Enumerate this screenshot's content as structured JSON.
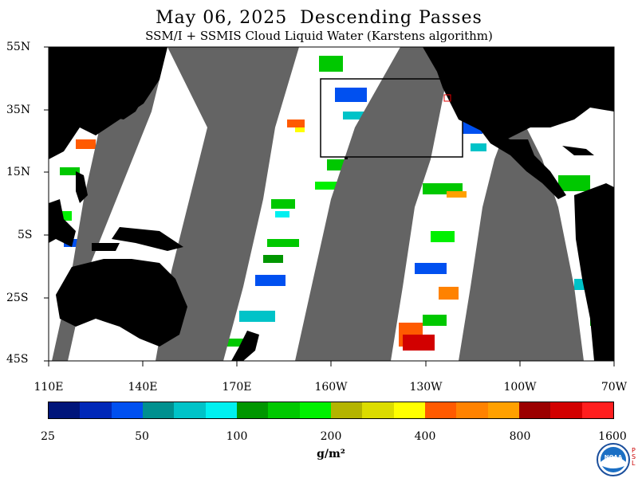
{
  "title": "May 06, 2025  Descending Passes",
  "subtitle": "SSM/I + SSMIS Cloud Liquid Water (Karstens algorithm)",
  "lat_labels": [
    "55N",
    "35N",
    "15N",
    "5S",
    "25S",
    "45S"
  ],
  "lon_labels": [
    "110E",
    "140E",
    "170E",
    "160W",
    "130W",
    "100W",
    "70W"
  ],
  "colorbar": {
    "colors": [
      "#00157a",
      "#0028b8",
      "#0050f0",
      "#00908f",
      "#00c3c8",
      "#00f0f0",
      "#009600",
      "#00c800",
      "#00f000",
      "#b4b400",
      "#dcdc00",
      "#ffff00",
      "#ff5a00",
      "#ff8200",
      "#ffa000",
      "#9b0000",
      "#d20000",
      "#ff1e1e"
    ],
    "ticks": [
      "25",
      "50",
      "100",
      "200",
      "400",
      "800",
      "1600"
    ],
    "units": "g/m²"
  },
  "logo": {
    "text": "NOAA",
    "psl": "PSL"
  },
  "colors": {
    "land": "#000000",
    "nodata": "#646464",
    "ocean_clear": "#ffffff",
    "box": "#000000",
    "marker": "#e00000"
  }
}
